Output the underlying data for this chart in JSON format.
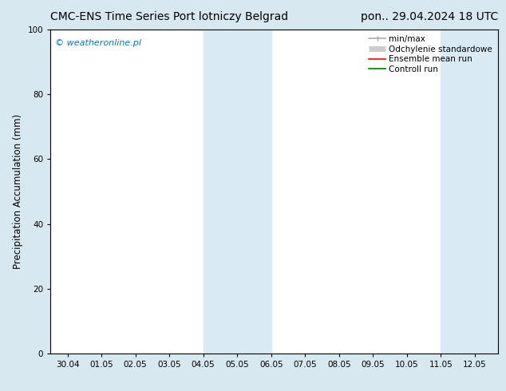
{
  "title_left": "CMC-ENS Time Series Port lotniczy Belgrad",
  "title_right": "pon.. 29.04.2024 18 UTC",
  "ylabel": "Precipitation Accumulation (mm)",
  "watermark": "© weatheronline.pl",
  "watermark_color": "#0077cc",
  "background_color": "#d8e8f0",
  "plot_bg_color": "#ffffff",
  "ylim": [
    0,
    100
  ],
  "yticks": [
    0,
    20,
    40,
    60,
    80,
    100
  ],
  "x_labels": [
    "30.04",
    "01.05",
    "02.05",
    "03.05",
    "04.05",
    "05.05",
    "06.05",
    "07.05",
    "08.05",
    "09.05",
    "10.05",
    "11.05",
    "12.05"
  ],
  "x_values": [
    0,
    1,
    2,
    3,
    4,
    5,
    6,
    7,
    8,
    9,
    10,
    11,
    12
  ],
  "xlim": [
    -0.5,
    12.7
  ],
  "shaded_regions": [
    {
      "x_start": 4.0,
      "x_end": 6.0,
      "color": "#daeaf5"
    },
    {
      "x_start": 11.0,
      "x_end": 12.7,
      "color": "#daeaf5"
    }
  ],
  "legend_items": [
    {
      "label": "min/max",
      "color": "#aaaaaa",
      "lw": 1.2
    },
    {
      "label": "Odchylenie standardowe",
      "color": "#cccccc",
      "lw": 5
    },
    {
      "label": "Ensemble mean run",
      "color": "#ff0000",
      "lw": 1.2
    },
    {
      "label": "Controll run",
      "color": "#007700",
      "lw": 1.2
    }
  ],
  "title_fontsize": 10,
  "tick_label_fontsize": 7.5,
  "ylabel_fontsize": 8.5,
  "watermark_fontsize": 8,
  "legend_fontsize": 7.5
}
